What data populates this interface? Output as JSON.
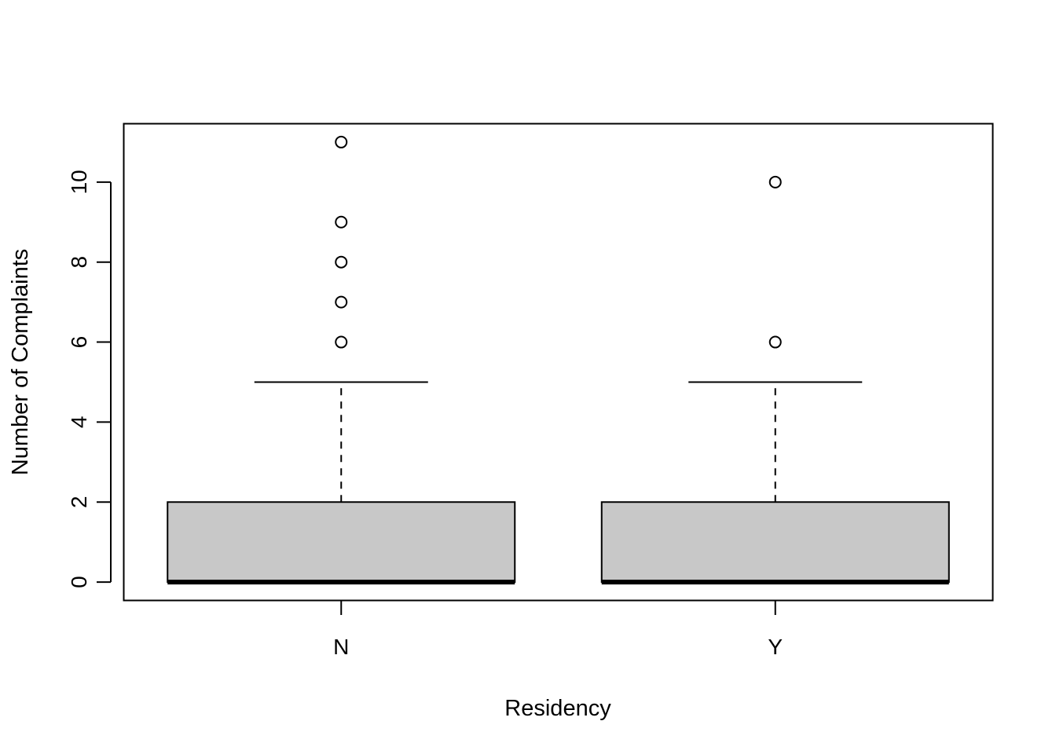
{
  "chart_data": {
    "type": "boxplot",
    "xlabel": "Residency",
    "ylabel": "Number of Complaints",
    "ylim": [
      -0.45,
      11.45
    ],
    "yticks": [
      0,
      2,
      4,
      6,
      8,
      10
    ],
    "grid": false,
    "categories": [
      "N",
      "Y"
    ],
    "boxes": [
      {
        "category": "N",
        "min": 0,
        "q1": 0,
        "median": 0,
        "q3": 2,
        "max": 5,
        "outliers": [
          6,
          7,
          8,
          9,
          11
        ]
      },
      {
        "category": "Y",
        "min": 0,
        "q1": 0,
        "median": 0,
        "q3": 2,
        "max": 5,
        "outliers": [
          6,
          10
        ]
      }
    ],
    "box_fill": "#c8c8c8"
  }
}
